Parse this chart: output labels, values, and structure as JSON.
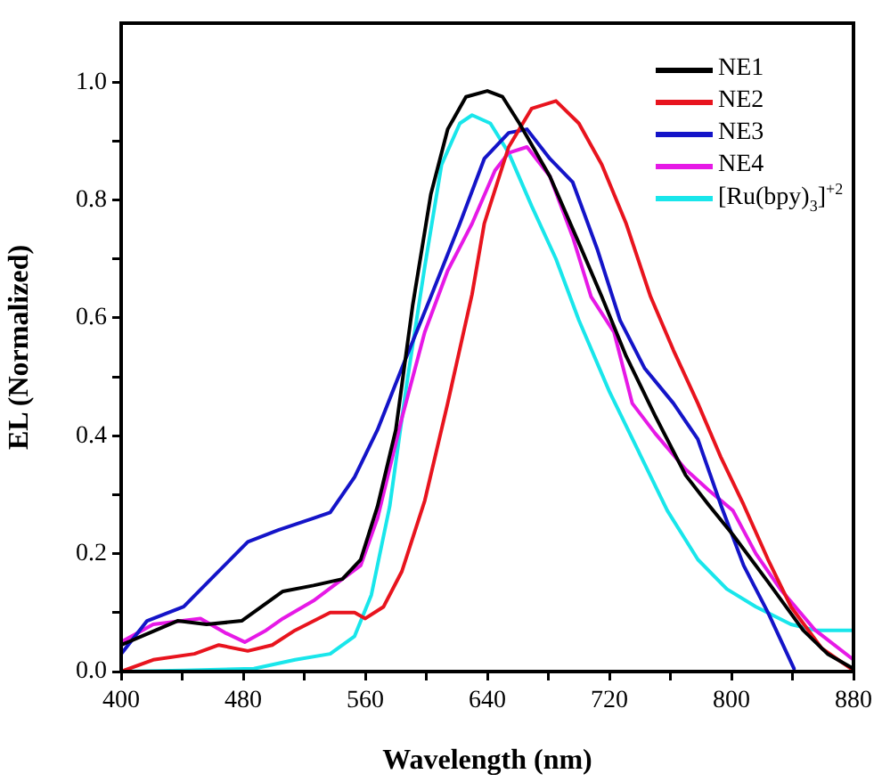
{
  "chart_data": {
    "type": "line",
    "xlabel": "Wavelength (nm)",
    "ylabel": "EL (Normalized)",
    "xlim": [
      400,
      880
    ],
    "xticks": [
      400,
      {
        "value": 440,
        "label": null
      },
      480,
      {
        "value": 520,
        "label": null
      },
      560,
      {
        "value": 600,
        "label": null
      },
      640,
      {
        "value": 680,
        "label": null
      },
      720,
      {
        "value": 760,
        "label": null
      },
      800,
      {
        "value": 840,
        "label": null
      },
      880
    ],
    "ylim": [
      0,
      1.1
    ],
    "yticks": [
      {
        "value": 0,
        "label": "0.0"
      },
      {
        "value": 0.1,
        "label": null
      },
      {
        "value": 0.2,
        "label": "0.2"
      },
      {
        "value": 0.3,
        "label": null
      },
      {
        "value": 0.4,
        "label": "0.4"
      },
      {
        "value": 0.5,
        "label": null
      },
      {
        "value": 0.6,
        "label": "0.6"
      },
      {
        "value": 0.7,
        "label": null
      },
      {
        "value": 0.8,
        "label": "0.8"
      },
      {
        "value": 0.9,
        "label": null
      },
      {
        "value": 1.0,
        "label": "1.0"
      }
    ],
    "grid": false,
    "legend": "top right",
    "marker": "none",
    "line_style": "solid",
    "series": [
      {
        "name": "NE1",
        "color": "#000000",
        "x": [
          400,
          437,
          456,
          479,
          506,
          526,
          545,
          557,
          568,
          580,
          591,
          603,
          614,
          626,
          640,
          650,
          661,
          681,
          700,
          715,
          731,
          750,
          770,
          785,
          801,
          824,
          847,
          863,
          880
        ],
        "values": [
          0.045,
          0.086,
          0.08,
          0.086,
          0.136,
          0.146,
          0.157,
          0.19,
          0.28,
          0.41,
          0.62,
          0.81,
          0.92,
          0.975,
          0.985,
          0.975,
          0.93,
          0.84,
          0.727,
          0.636,
          0.535,
          0.434,
          0.333,
          0.283,
          0.232,
          0.152,
          0.07,
          0.03,
          0.005
        ]
      },
      {
        "name": "NE2",
        "color": "#e8141e",
        "x": [
          400,
          421,
          448,
          464,
          483,
          499,
          514,
          537,
          553,
          560,
          572,
          584,
          599,
          614,
          630,
          638,
          654,
          669,
          685,
          700,
          715,
          731,
          747,
          762,
          778,
          793,
          808,
          824,
          839,
          859,
          880
        ],
        "values": [
          0.0,
          0.02,
          0.03,
          0.045,
          0.035,
          0.045,
          0.07,
          0.1,
          0.1,
          0.09,
          0.11,
          0.17,
          0.29,
          0.455,
          0.64,
          0.76,
          0.89,
          0.955,
          0.968,
          0.93,
          0.86,
          0.76,
          0.636,
          0.545,
          0.455,
          0.364,
          0.283,
          0.19,
          0.11,
          0.04,
          0.002
        ]
      },
      {
        "name": "NE3",
        "color": "#1414c8",
        "x": [
          400,
          417,
          441,
          460,
          483,
          503,
          526,
          537,
          553,
          568,
          584,
          603,
          622,
          638,
          654,
          666,
          681,
          696,
          712,
          727,
          743,
          762,
          778,
          793,
          808,
          824,
          841
        ],
        "values": [
          0.03,
          0.086,
          0.11,
          0.16,
          0.22,
          0.24,
          0.26,
          0.27,
          0.33,
          0.41,
          0.515,
          0.636,
          0.76,
          0.87,
          0.914,
          0.92,
          0.87,
          0.83,
          0.717,
          0.596,
          0.515,
          0.455,
          0.394,
          0.283,
          0.18,
          0.1,
          0.005
        ]
      },
      {
        "name": "NE4",
        "color": "#e619e6",
        "x": [
          400,
          421,
          452,
          468,
          481,
          495,
          506,
          526,
          545,
          557,
          568,
          584,
          599,
          614,
          630,
          645,
          654,
          666,
          681,
          696,
          708,
          723,
          735,
          750,
          770,
          785,
          801,
          816,
          832,
          855,
          880
        ],
        "values": [
          0.05,
          0.08,
          0.09,
          0.066,
          0.05,
          0.07,
          0.09,
          0.12,
          0.157,
          0.18,
          0.26,
          0.43,
          0.576,
          0.68,
          0.76,
          0.85,
          0.88,
          0.89,
          0.84,
          0.737,
          0.636,
          0.576,
          0.455,
          0.404,
          0.343,
          0.308,
          0.273,
          0.2,
          0.14,
          0.07,
          0.02
        ]
      },
      {
        "name": "[Ru(bpy)$_{3}$]$^{+2}$",
        "color": "#19e6eb",
        "x": [
          400,
          441,
          487,
          514,
          537,
          553,
          564,
          576,
          587,
          599,
          610,
          622,
          630,
          642,
          654,
          669,
          685,
          700,
          720,
          739,
          758,
          778,
          797,
          816,
          839,
          855,
          880
        ],
        "values": [
          0.0,
          0.002,
          0.005,
          0.02,
          0.03,
          0.06,
          0.13,
          0.28,
          0.485,
          0.687,
          0.86,
          0.93,
          0.944,
          0.93,
          0.88,
          0.79,
          0.7,
          0.596,
          0.475,
          0.374,
          0.273,
          0.19,
          0.14,
          0.11,
          0.08,
          0.07,
          0.07
        ]
      }
    ]
  }
}
